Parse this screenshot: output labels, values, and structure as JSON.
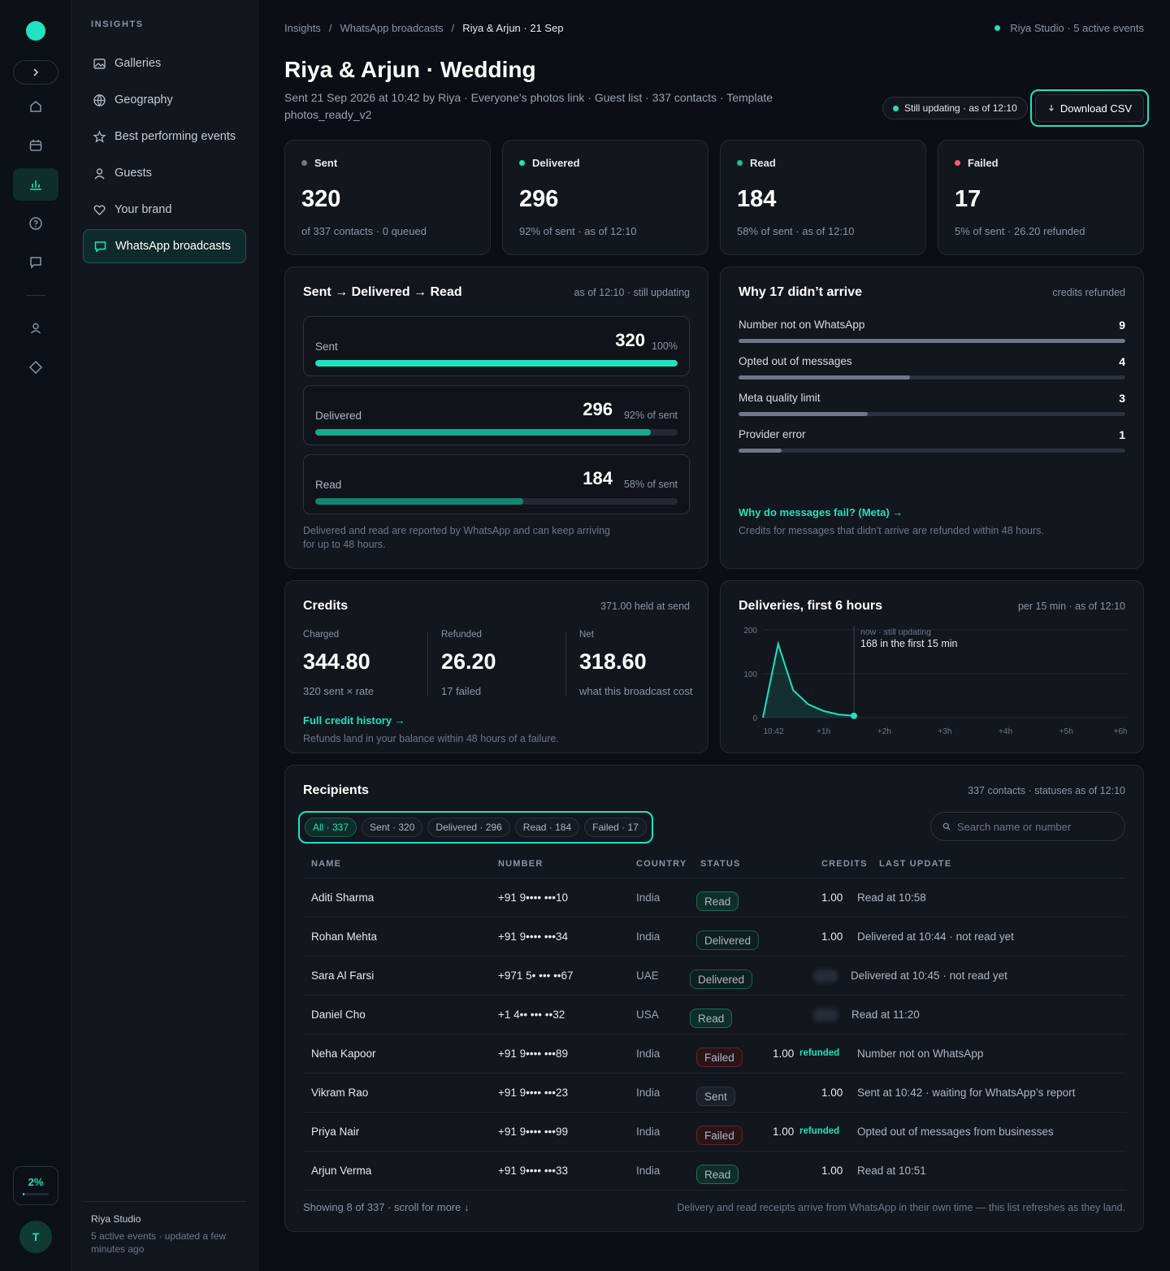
{
  "rail": {
    "expand_icon": "chevron-right-icon",
    "items": [
      "home-icon",
      "calendar-icon",
      "bar-chart-icon",
      "help-icon",
      "message-icon",
      "user-icon",
      "diamond-icon"
    ],
    "active_index": 2,
    "usage_label": "2%",
    "usage_fraction": 0.02,
    "avatar_initial": "T"
  },
  "sidebar": {
    "section": "INSIGHTS",
    "items": [
      {
        "label": "Galleries",
        "icon": "image-icon"
      },
      {
        "label": "Geography",
        "icon": "globe-icon"
      },
      {
        "label": "Best performing events",
        "icon": "star-icon"
      },
      {
        "label": "Guests",
        "icon": "user-icon"
      },
      {
        "label": "Your brand",
        "icon": "heart-icon"
      },
      {
        "label": "WhatsApp broadcasts",
        "icon": "chat-icon"
      }
    ],
    "active_index": 5,
    "footer_title": "Riya Studio",
    "footer_sub": "5 active events · updated a few minutes ago"
  },
  "breadcrumb": {
    "items": [
      "Insights",
      "WhatsApp broadcasts",
      "Riya & Arjun · 21 Sep"
    ],
    "separator": "/"
  },
  "studio_status": "Riya Studio · 5 active events",
  "title": "Riya & Arjun · Wedding",
  "subtitle": "Sent 21 Sep 2026 at 10:42 by Riya · Everyone’s photos link · Guest list · 337 contacts · Template photos_ready_v2",
  "still_updating": "Still updating · as of 12:10",
  "download_label": "Download CSV",
  "colors": {
    "accent": "#1ee3c0",
    "sent": "#6e7887",
    "failed": "#ff5a6e"
  },
  "stats": [
    {
      "label": "Sent",
      "value": "320",
      "sub": "of 337 contacts · 0 queued",
      "dot": "#6e7887"
    },
    {
      "label": "Delivered",
      "value": "296",
      "sub": "92% of sent · as of 12:10",
      "dot": "#1ee3c0"
    },
    {
      "label": "Read",
      "value": "184",
      "sub": "58% of sent · as of 12:10",
      "dot": "#1fbf8f"
    },
    {
      "label": "Failed",
      "value": "17",
      "sub": "5% of sent · 26.20 refunded",
      "dot": "#ff5a6e"
    }
  ],
  "funnel": {
    "title": "Sent → Delivered → Read",
    "note": "as of 12:10 · still updating",
    "rows": [
      {
        "label": "Sent",
        "value": "320",
        "pct": "100%",
        "fraction": 1.0
      },
      {
        "label": "Delivered",
        "value": "296",
        "pct": "92% of sent",
        "fraction": 0.925
      },
      {
        "label": "Read",
        "value": "184",
        "pct": "58% of sent",
        "fraction": 0.575
      }
    ],
    "footnote": "Delivered and read are reported by WhatsApp and can keep arriving for up to 48 hours."
  },
  "why": {
    "title": "Why 17 didn’t arrive",
    "note": "credits refunded",
    "rows": [
      {
        "label": "Number not on WhatsApp",
        "value": "9",
        "fraction": 1.0
      },
      {
        "label": "Opted out of messages",
        "value": "4",
        "fraction": 0.444
      },
      {
        "label": "Meta quality limit",
        "value": "3",
        "fraction": 0.333
      },
      {
        "label": "Provider error",
        "value": "1",
        "fraction": 0.111
      }
    ],
    "link": "Why do messages fail? (Meta) →",
    "footnote": "Credits for messages that didn’t arrive are refunded within 48 hours."
  },
  "credits": {
    "title": "Credits",
    "note": "371.00 held at send",
    "cols": [
      {
        "key": "Charged",
        "value": "344.80",
        "sub": "320 sent × rate"
      },
      {
        "key": "Refunded",
        "value": "26.20",
        "sub": "17 failed"
      },
      {
        "key": "Net",
        "value": "318.60",
        "sub": "what this broadcast cost"
      }
    ],
    "link": "Full credit history →",
    "footnote": "Refunds land in your balance within 48 hours of a failure."
  },
  "deliveries": {
    "title": "Deliveries, first 6 hours",
    "note": "per 15 min · as of 12:10",
    "annotation_top": "now · still updating",
    "annotation_main": "168 in the first 15 min"
  },
  "chart_data": {
    "type": "area",
    "x": [
      "10:42",
      "10:57",
      "11:12",
      "11:27",
      "11:42",
      "11:57",
      "12:10"
    ],
    "y": [
      0,
      168,
      62,
      30,
      15,
      7,
      4
    ],
    "ylim": [
      0,
      200
    ],
    "yticks": [
      "200",
      "100",
      "0"
    ],
    "xticks": [
      "10:42",
      "+1h",
      "+2h",
      "+3h",
      "+4h",
      "+5h",
      "+6h"
    ],
    "grid": true
  },
  "recipients": {
    "title": "Recipients",
    "note": "337 contacts · statuses as of 12:10",
    "filters": [
      "All · 337",
      "Sent · 320",
      "Delivered · 296",
      "Read · 184",
      "Failed · 17"
    ],
    "active_filter": 0,
    "search_placeholder": "Search name or number",
    "columns": [
      "NAME",
      "NUMBER",
      "COUNTRY",
      "STATUS",
      "CREDITS",
      "LAST UPDATE"
    ],
    "rows": [
      {
        "name": "Aditi Sharma",
        "number": "+91 9•••• •••10",
        "country": "India",
        "status": "Read",
        "credits": "1.00",
        "refunded": "",
        "update": "Read at 10:58"
      },
      {
        "name": "Rohan Mehta",
        "number": "+91 9•••• •••34",
        "country": "India",
        "status": "Delivered",
        "credits": "1.00",
        "refunded": "",
        "update": "Delivered at 10:44 · not read yet"
      },
      {
        "name": "Sara Al Farsi",
        "number": "+971 5• ••• ••67",
        "country": "UAE",
        "status": "Delivered",
        "credits": "",
        "refunded": "",
        "update": "Delivered at 10:45 · not read yet"
      },
      {
        "name": "Daniel Cho",
        "number": "+1 4•• ••• ••32",
        "country": "USA",
        "status": "Read",
        "credits": "",
        "refunded": "",
        "update": "Read at 11:20"
      },
      {
        "name": "Neha Kapoor",
        "number": "+91 9•••• •••89",
        "country": "India",
        "status": "Failed",
        "credits": "1.00",
        "refunded": "refunded",
        "update": "Number not on WhatsApp"
      },
      {
        "name": "Vikram Rao",
        "number": "+91 9•••• •••23",
        "country": "India",
        "status": "Sent",
        "credits": "1.00",
        "refunded": "",
        "update": "Sent at 10:42 · waiting for WhatsApp’s report"
      },
      {
        "name": "Priya Nair",
        "number": "+91 9•••• •••99",
        "country": "India",
        "status": "Failed",
        "credits": "1.00",
        "refunded": "refunded",
        "update": "Opted out of messages from businesses"
      },
      {
        "name": "Arjun Verma",
        "number": "+91 9•••• •••33",
        "country": "India",
        "status": "Read",
        "credits": "1.00",
        "refunded": "",
        "update": "Read at 10:51"
      }
    ],
    "showing": "Showing 8 of 337 · scroll for more ↓",
    "footnote": "Delivery and read receipts arrive from WhatsApp in their own time — this list refreshes as they land."
  }
}
